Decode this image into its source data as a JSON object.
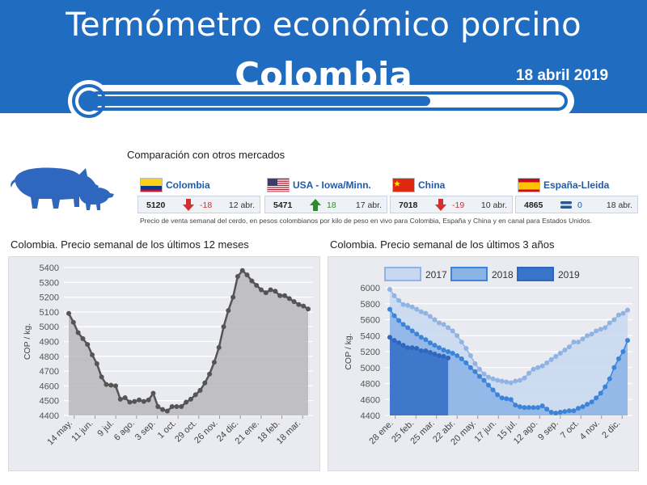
{
  "header": {
    "title": "Termómetro económico porcino",
    "country": "Colombia",
    "date": "18 abril 2019"
  },
  "comparison": {
    "title": "Comparación con otros mercados",
    "note": "Precio de venta semanal del cerdo, en pesos colombianos por kilo de peso en vivo para Colombia, España y China y en canal para Estados Unidos.",
    "markets": [
      {
        "name": "Colombia",
        "flag": "colombia-flag",
        "value": "5120",
        "direction": "down",
        "change": "-18",
        "date": "12 abr.",
        "color": "#d32f2f"
      },
      {
        "name": "USA - Iowa/Minn.",
        "flag": "usa-flag",
        "value": "5471",
        "direction": "up",
        "change": "18",
        "date": "17 abr.",
        "color": "#2e8b2e"
      },
      {
        "name": "China",
        "flag": "china-flag",
        "value": "7018",
        "direction": "down",
        "change": "-19",
        "date": "10 abr.",
        "color": "#d32f2f"
      },
      {
        "name": "España-Lleida",
        "flag": "spain-flag",
        "value": "4865",
        "direction": "flat",
        "change": "0",
        "date": "18 abr.",
        "color": "#1f5aa6"
      }
    ]
  },
  "colors": {
    "header": "#1f6cc1",
    "line12": "#555555",
    "fill12": "#b8b8bc",
    "s2017": "#8fb3e3",
    "s2018": "#3b84d8",
    "s2019": "#2f67bf"
  },
  "chart_data": [
    {
      "type": "area",
      "title": "Colombia. Precio semanal de los últimos 12 meses",
      "ylabel": "COP / kg.",
      "ylim": [
        4400,
        5400
      ],
      "yticks": [
        4400,
        4500,
        4600,
        4700,
        4800,
        4900,
        5000,
        5100,
        5200,
        5300,
        5400
      ],
      "xtick_labels": [
        "14 may.",
        "11 jun.",
        "9 jul.",
        "6 ago.",
        "3 sep.",
        "1 oct.",
        "29 oct.",
        "26 nov.",
        "24 dic.",
        "21 ene.",
        "18 feb.",
        "18 mar."
      ],
      "grid": true,
      "series": [
        {
          "values": [
            5090,
            5030,
            4960,
            4920,
            4880,
            4810,
            4750,
            4660,
            4610,
            4605,
            4600,
            4510,
            4520,
            4490,
            4495,
            4505,
            4495,
            4505,
            4550,
            4460,
            4440,
            4430,
            4460,
            4460,
            4460,
            4490,
            4510,
            4540,
            4570,
            4620,
            4680,
            4760,
            4860,
            5000,
            5110,
            5200,
            5340,
            5380,
            5350,
            5310,
            5280,
            5250,
            5230,
            5250,
            5240,
            5210,
            5210,
            5190,
            5170,
            5150,
            5140,
            5120
          ]
        }
      ]
    },
    {
      "type": "area",
      "title": "Colombia. Precio semanal de los últimos 3 años",
      "ylabel": "COP / kg.",
      "ylim": [
        4400,
        6000
      ],
      "yticks": [
        4400,
        4600,
        4800,
        5000,
        5200,
        5400,
        5600,
        5800,
        6000
      ],
      "xtick_labels": [
        "28 ene.",
        "25 feb.",
        "25 mar.",
        "22 abr.",
        "20 may.",
        "17 jun.",
        "15 jul.",
        "12 ago.",
        "9 sep.",
        "7 oct.",
        "4 nov.",
        "2 dic."
      ],
      "legend": [
        "2017",
        "2018",
        "2019"
      ],
      "legend_position": "top",
      "grid": true,
      "series": [
        {
          "name": "2017",
          "values": [
            5980,
            5900,
            5840,
            5790,
            5780,
            5760,
            5730,
            5700,
            5680,
            5640,
            5600,
            5560,
            5540,
            5500,
            5460,
            5400,
            5320,
            5240,
            5150,
            5050,
            4980,
            4920,
            4880,
            4860,
            4840,
            4830,
            4820,
            4810,
            4830,
            4840,
            4870,
            4930,
            4980,
            5000,
            5020,
            5060,
            5100,
            5140,
            5180,
            5220,
            5260,
            5320,
            5320,
            5360,
            5400,
            5420,
            5460,
            5480,
            5500,
            5560,
            5600,
            5660,
            5680,
            5720
          ]
        },
        {
          "name": "2018",
          "values": [
            5730,
            5650,
            5590,
            5540,
            5500,
            5460,
            5420,
            5380,
            5350,
            5310,
            5280,
            5250,
            5220,
            5200,
            5180,
            5150,
            5110,
            5060,
            5000,
            4950,
            4890,
            4840,
            4780,
            4720,
            4660,
            4620,
            4610,
            4600,
            4530,
            4510,
            4500,
            4500,
            4500,
            4500,
            4520,
            4480,
            4440,
            4430,
            4440,
            4450,
            4460,
            4460,
            4490,
            4510,
            4540,
            4570,
            4620,
            4680,
            4760,
            4860,
            5000,
            5110,
            5200,
            5340
          ]
        },
        {
          "name": "2019",
          "values": [
            5380,
            5340,
            5310,
            5280,
            5250,
            5250,
            5240,
            5210,
            5210,
            5190,
            5170,
            5150,
            5140,
            5120
          ]
        }
      ]
    }
  ]
}
